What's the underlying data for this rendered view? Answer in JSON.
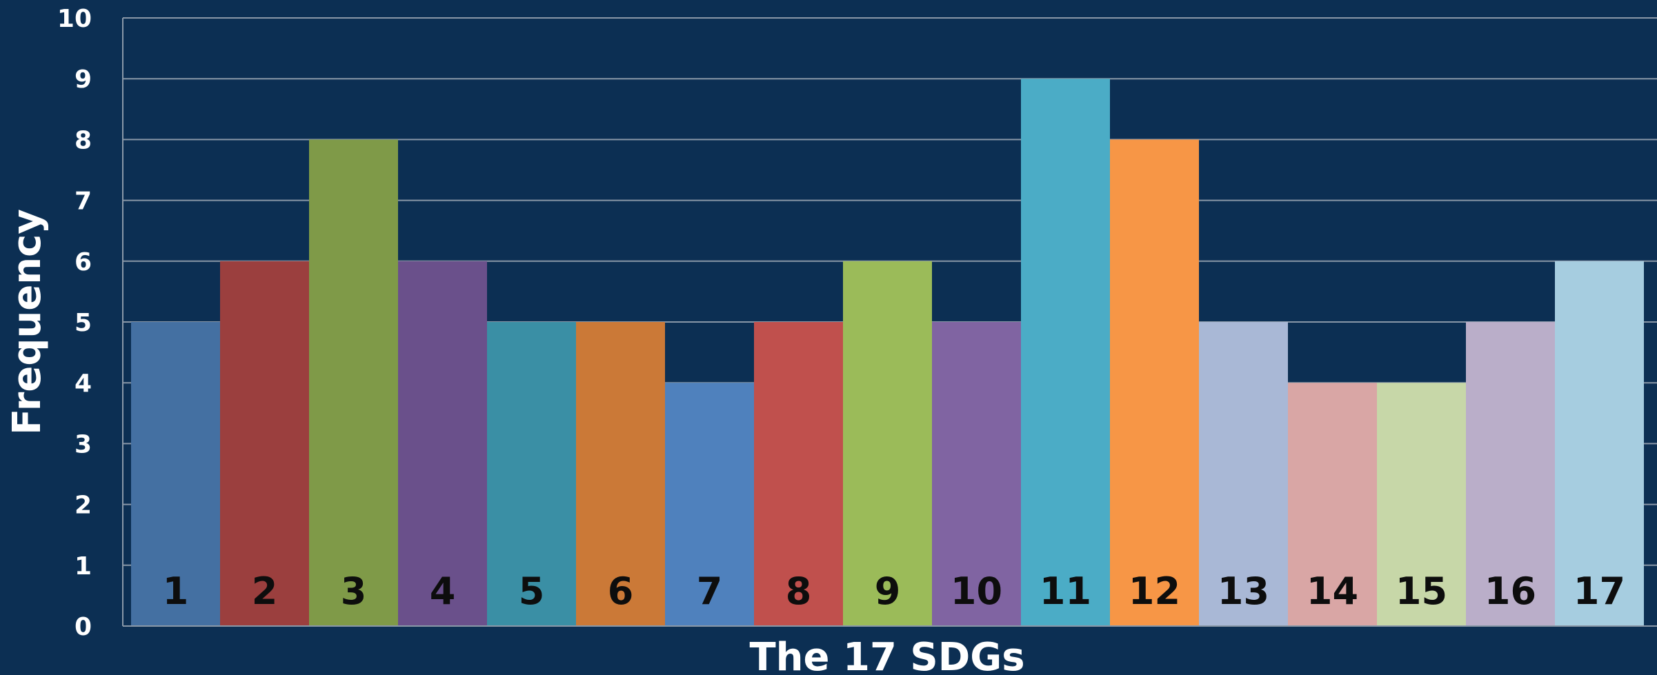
{
  "chart_data": {
    "type": "bar",
    "title": "",
    "xlabel": "The 17 SDGs",
    "ylabel": "Frequency",
    "ylim": [
      0,
      10
    ],
    "yticks": [
      "0",
      "1",
      "2",
      "3",
      "4",
      "5",
      "6",
      "7",
      "8",
      "9",
      "10"
    ],
    "grid": true,
    "legend": "none",
    "categories": [
      "1",
      "2",
      "3",
      "4",
      "5",
      "6",
      "7",
      "8",
      "9",
      "10",
      "11",
      "12",
      "13",
      "14",
      "15",
      "16",
      "17"
    ],
    "values": [
      5,
      6,
      8,
      6,
      5,
      5,
      4,
      5,
      6,
      5,
      9,
      8,
      5,
      4,
      4,
      5,
      6
    ],
    "colors": [
      "#4470a2",
      "#9b3f3e",
      "#7f9a48",
      "#6a508b",
      "#3a8fa5",
      "#cb7937",
      "#4f81bd",
      "#c0504d",
      "#9bbb59",
      "#8064a2",
      "#4bacc6",
      "#f79646",
      "#a9b8d6",
      "#d9a6a5",
      "#c7d7a8",
      "#baaec9",
      "#a6cde0"
    ],
    "background": "#0c2f53"
  }
}
